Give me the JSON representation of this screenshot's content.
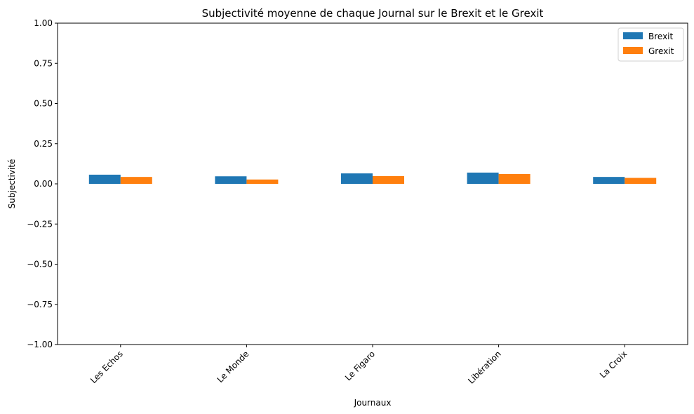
{
  "chart_data": {
    "type": "bar",
    "title": "Subjectivité moyenne de chaque Journal sur le Brexit et le Grexit",
    "xlabel": "Journaux",
    "ylabel": "Subjectivité",
    "categories": [
      "Les Echos",
      "Le Monde",
      "Le Figaro",
      "Libération",
      "La Croix"
    ],
    "series": [
      {
        "name": "Brexit",
        "color": "#1f77b4",
        "values": [
          0.057,
          0.047,
          0.065,
          0.07,
          0.043
        ]
      },
      {
        "name": "Grexit",
        "color": "#ff7f0e",
        "values": [
          0.043,
          0.027,
          0.048,
          0.061,
          0.037
        ]
      }
    ],
    "ylim": [
      -1.0,
      1.0
    ],
    "yticks": [
      {
        "value": -1.0,
        "label": "−1.00"
      },
      {
        "value": -0.75,
        "label": "−0.75"
      },
      {
        "value": -0.5,
        "label": "−0.50"
      },
      {
        "value": -0.25,
        "label": "−0.25"
      },
      {
        "value": 0.0,
        "label": "0.00"
      },
      {
        "value": 0.25,
        "label": "0.25"
      },
      {
        "value": 0.5,
        "label": "0.50"
      },
      {
        "value": 0.75,
        "label": "0.75"
      },
      {
        "value": 1.0,
        "label": "1.00"
      }
    ],
    "grid": false,
    "legend_position": "top-right"
  }
}
